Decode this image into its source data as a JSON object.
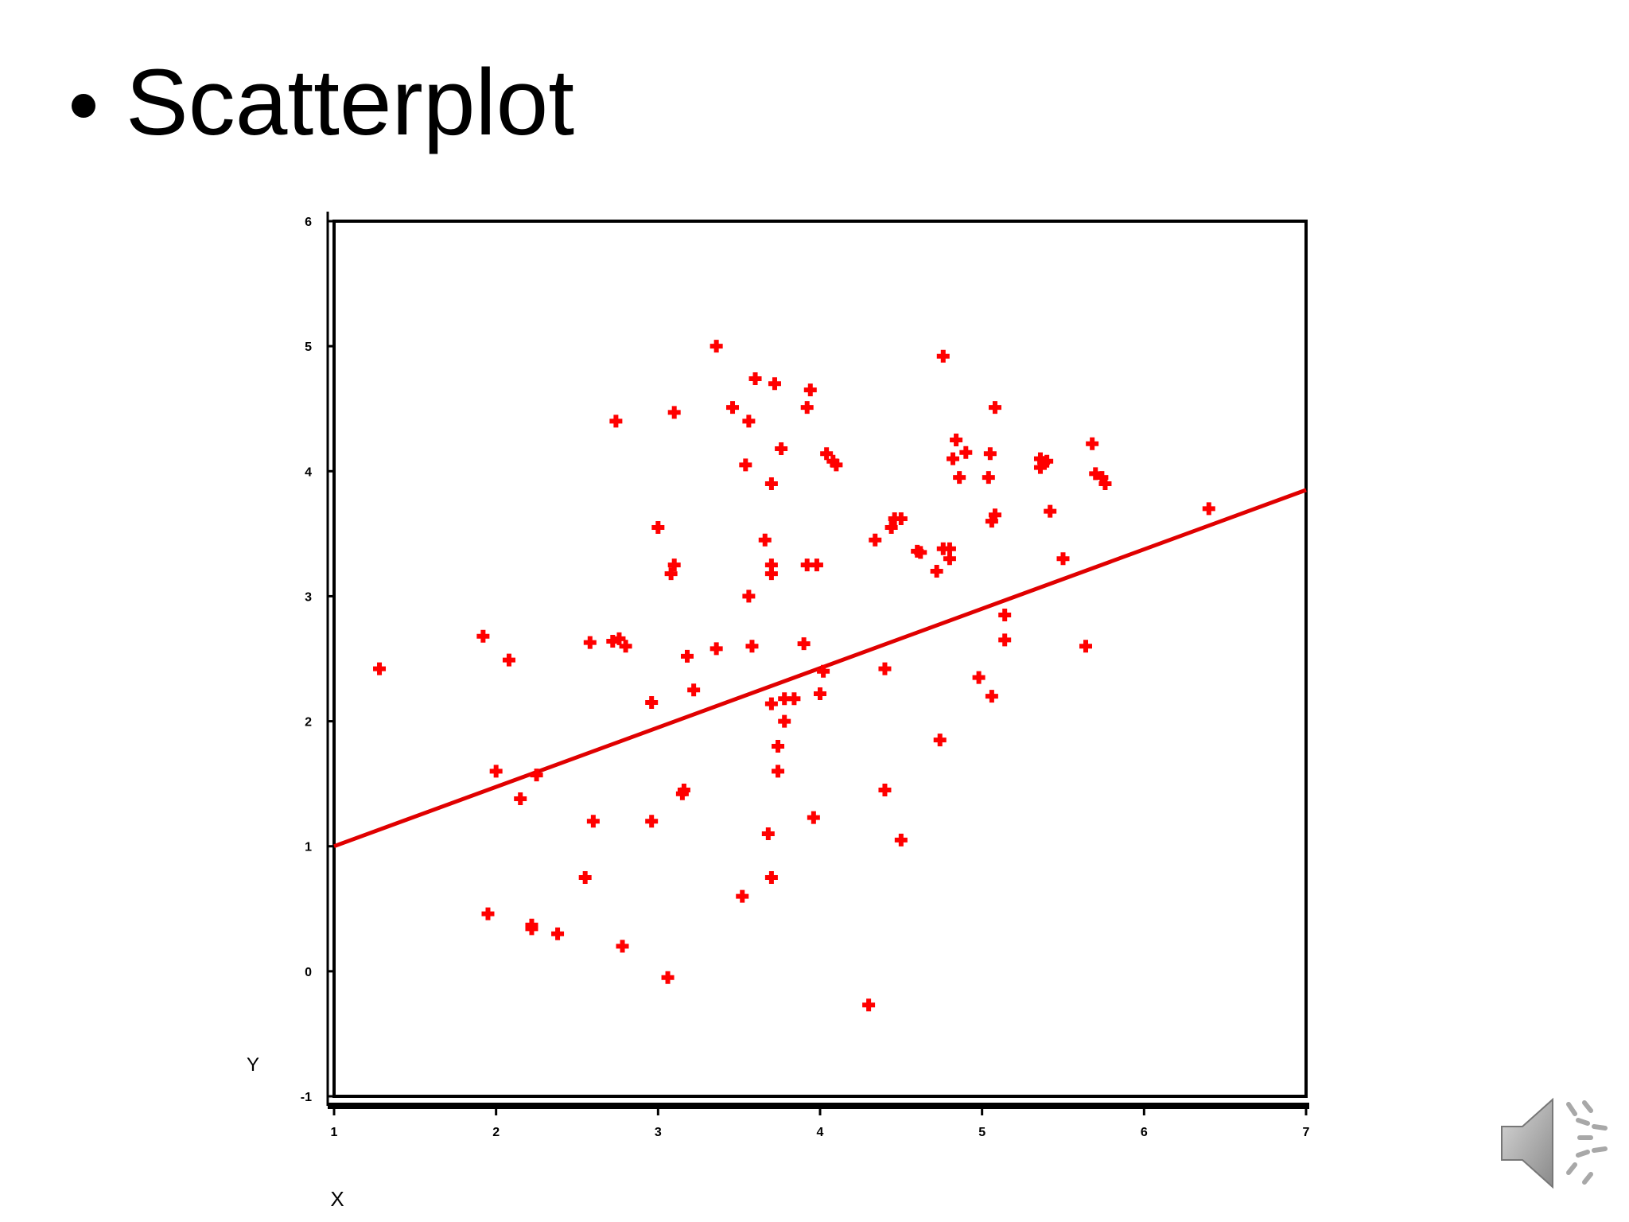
{
  "slide": {
    "title": "Scatterplot",
    "bullet_icon": "bullet-dot"
  },
  "colors": {
    "points": "#ff0000",
    "fit_line": "#e00000",
    "axis": "#000000",
    "background": "#ffffff"
  },
  "chart_data": {
    "type": "scatter",
    "title": "",
    "xlabel": "X",
    "ylabel": "Y",
    "xlim": [
      1,
      7
    ],
    "ylim": [
      -1,
      6
    ],
    "grid": false,
    "legend": "none",
    "x_ticks": [
      1,
      2,
      3,
      4,
      5,
      6,
      7
    ],
    "y_ticks": [
      -1,
      0,
      1,
      2,
      3,
      4,
      5,
      6
    ],
    "fit_line": {
      "x": [
        1,
        7
      ],
      "y": [
        1.0,
        3.85
      ]
    },
    "points": [
      {
        "x": 1.28,
        "y": 2.42
      },
      {
        "x": 1.92,
        "y": 2.68
      },
      {
        "x": 2.08,
        "y": 2.49
      },
      {
        "x": 1.95,
        "y": 0.46
      },
      {
        "x": 2.0,
        "y": 1.6
      },
      {
        "x": 2.15,
        "y": 1.38
      },
      {
        "x": 2.25,
        "y": 1.57
      },
      {
        "x": 2.22,
        "y": 0.37
      },
      {
        "x": 2.22,
        "y": 0.34
      },
      {
        "x": 2.38,
        "y": 0.3
      },
      {
        "x": 2.55,
        "y": 0.75
      },
      {
        "x": 2.58,
        "y": 2.63
      },
      {
        "x": 2.6,
        "y": 1.2
      },
      {
        "x": 2.72,
        "y": 2.64
      },
      {
        "x": 2.76,
        "y": 2.66
      },
      {
        "x": 2.8,
        "y": 2.6
      },
      {
        "x": 2.74,
        "y": 4.4
      },
      {
        "x": 2.78,
        "y": 0.2
      },
      {
        "x": 2.96,
        "y": 2.15
      },
      {
        "x": 2.96,
        "y": 1.2
      },
      {
        "x": 3.0,
        "y": 3.55
      },
      {
        "x": 3.06,
        "y": -0.05
      },
      {
        "x": 3.08,
        "y": 3.18
      },
      {
        "x": 3.1,
        "y": 3.25
      },
      {
        "x": 3.1,
        "y": 4.47
      },
      {
        "x": 3.15,
        "y": 1.42
      },
      {
        "x": 3.16,
        "y": 1.45
      },
      {
        "x": 3.18,
        "y": 2.52
      },
      {
        "x": 3.22,
        "y": 2.25
      },
      {
        "x": 3.36,
        "y": 5.0
      },
      {
        "x": 3.36,
        "y": 2.58
      },
      {
        "x": 3.46,
        "y": 4.51
      },
      {
        "x": 3.52,
        "y": 0.6
      },
      {
        "x": 3.54,
        "y": 4.05
      },
      {
        "x": 3.56,
        "y": 3.0
      },
      {
        "x": 3.56,
        "y": 4.4
      },
      {
        "x": 3.58,
        "y": 2.6
      },
      {
        "x": 3.6,
        "y": 4.74
      },
      {
        "x": 3.66,
        "y": 3.45
      },
      {
        "x": 3.68,
        "y": 1.1
      },
      {
        "x": 3.7,
        "y": 2.14
      },
      {
        "x": 3.7,
        "y": 0.75
      },
      {
        "x": 3.7,
        "y": 3.9
      },
      {
        "x": 3.7,
        "y": 3.25
      },
      {
        "x": 3.7,
        "y": 3.18
      },
      {
        "x": 3.72,
        "y": 4.7
      },
      {
        "x": 3.74,
        "y": 1.8
      },
      {
        "x": 3.74,
        "y": 1.6
      },
      {
        "x": 3.76,
        "y": 4.18
      },
      {
        "x": 3.78,
        "y": 2.0
      },
      {
        "x": 3.78,
        "y": 2.18
      },
      {
        "x": 3.84,
        "y": 2.18
      },
      {
        "x": 3.9,
        "y": 2.62
      },
      {
        "x": 3.92,
        "y": 3.25
      },
      {
        "x": 3.92,
        "y": 4.51
      },
      {
        "x": 3.94,
        "y": 4.65
      },
      {
        "x": 3.96,
        "y": 1.23
      },
      {
        "x": 3.98,
        "y": 3.25
      },
      {
        "x": 4.0,
        "y": 2.22
      },
      {
        "x": 4.02,
        "y": 2.4
      },
      {
        "x": 4.04,
        "y": 4.14
      },
      {
        "x": 4.08,
        "y": 4.08
      },
      {
        "x": 4.1,
        "y": 4.05
      },
      {
        "x": 4.3,
        "y": -0.27
      },
      {
        "x": 4.34,
        "y": 3.45
      },
      {
        "x": 4.4,
        "y": 2.42
      },
      {
        "x": 4.4,
        "y": 1.45
      },
      {
        "x": 4.44,
        "y": 3.55
      },
      {
        "x": 4.46,
        "y": 3.62
      },
      {
        "x": 4.5,
        "y": 3.62
      },
      {
        "x": 4.5,
        "y": 1.05
      },
      {
        "x": 4.6,
        "y": 3.36
      },
      {
        "x": 4.62,
        "y": 3.35
      },
      {
        "x": 4.72,
        "y": 3.2
      },
      {
        "x": 4.74,
        "y": 1.85
      },
      {
        "x": 4.76,
        "y": 4.92
      },
      {
        "x": 4.76,
        "y": 3.38
      },
      {
        "x": 4.8,
        "y": 3.3
      },
      {
        "x": 4.8,
        "y": 3.38
      },
      {
        "x": 4.82,
        "y": 4.1
      },
      {
        "x": 4.84,
        "y": 4.25
      },
      {
        "x": 4.86,
        "y": 3.95
      },
      {
        "x": 4.9,
        "y": 4.15
      },
      {
        "x": 4.98,
        "y": 2.35
      },
      {
        "x": 5.04,
        "y": 3.95
      },
      {
        "x": 5.05,
        "y": 4.14
      },
      {
        "x": 5.06,
        "y": 2.2
      },
      {
        "x": 5.06,
        "y": 3.6
      },
      {
        "x": 5.08,
        "y": 4.51
      },
      {
        "x": 5.08,
        "y": 3.65
      },
      {
        "x": 5.14,
        "y": 2.85
      },
      {
        "x": 5.14,
        "y": 2.65
      },
      {
        "x": 5.36,
        "y": 4.03
      },
      {
        "x": 5.36,
        "y": 4.1
      },
      {
        "x": 5.38,
        "y": 4.07
      },
      {
        "x": 5.4,
        "y": 4.08
      },
      {
        "x": 5.42,
        "y": 3.68
      },
      {
        "x": 5.5,
        "y": 3.3
      },
      {
        "x": 5.64,
        "y": 2.6
      },
      {
        "x": 5.68,
        "y": 4.22
      },
      {
        "x": 5.7,
        "y": 3.98
      },
      {
        "x": 5.74,
        "y": 3.95
      },
      {
        "x": 5.76,
        "y": 3.9
      },
      {
        "x": 6.4,
        "y": 3.7
      }
    ]
  }
}
